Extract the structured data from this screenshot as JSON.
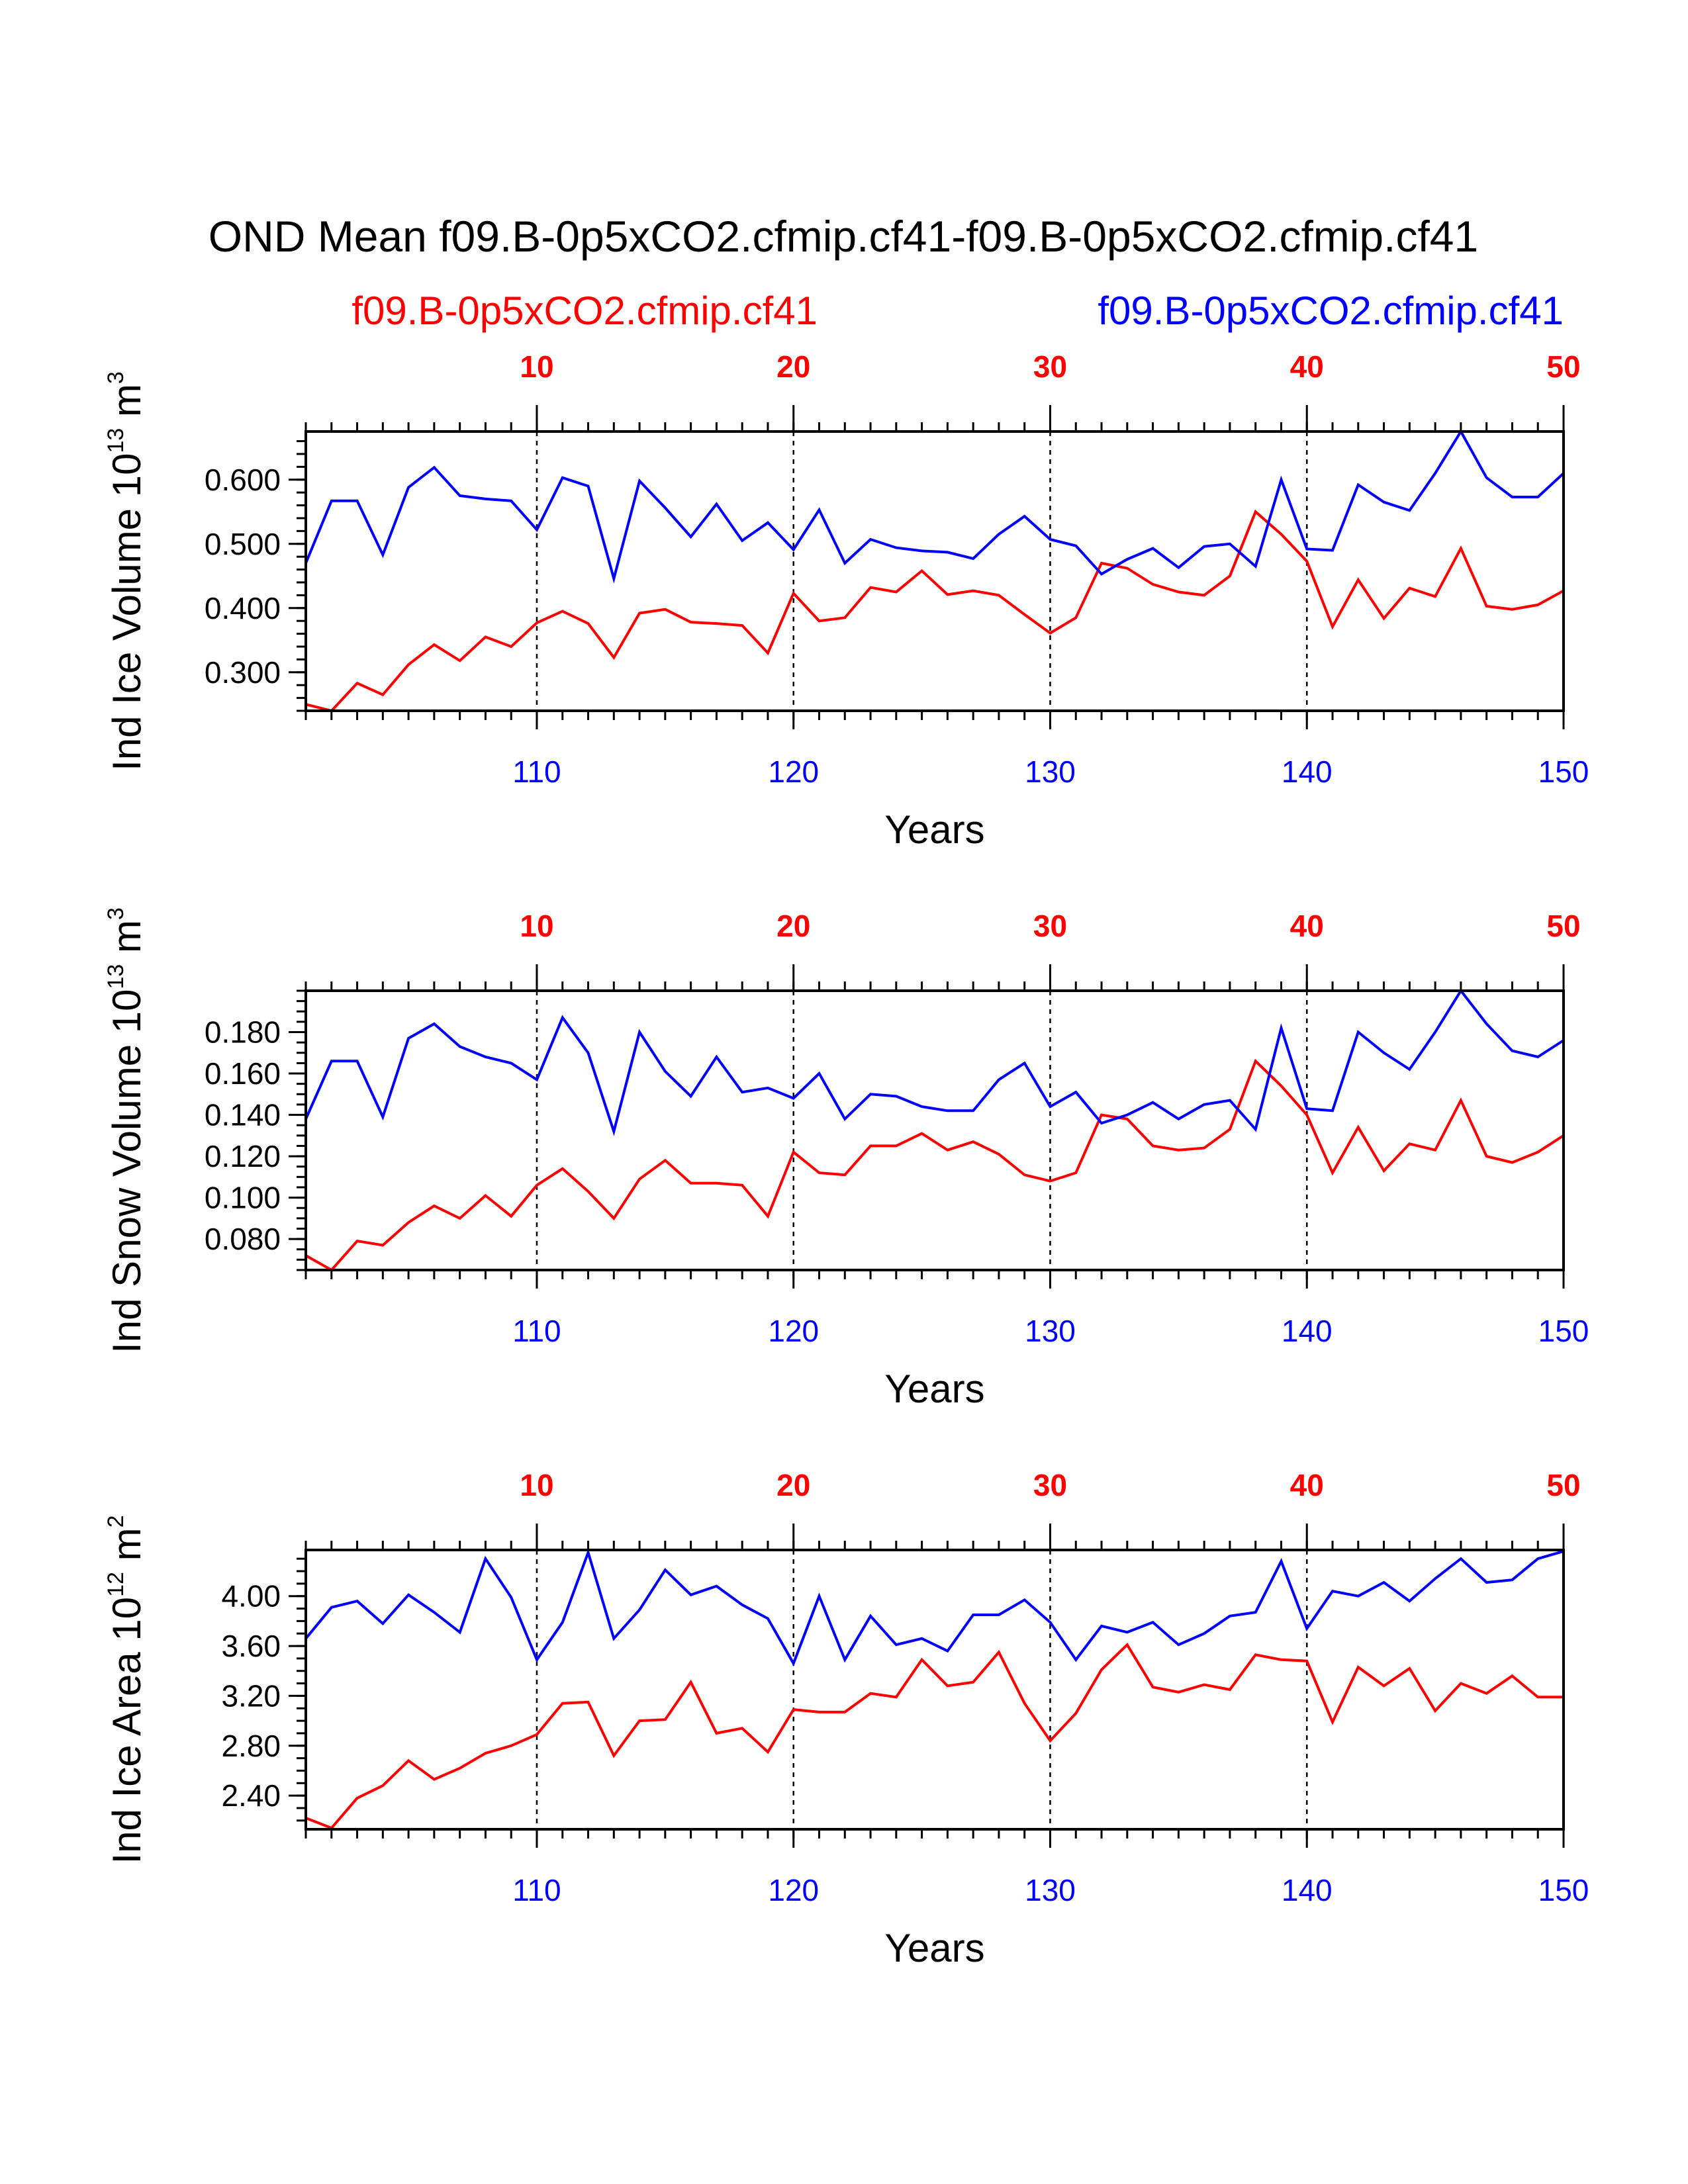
{
  "title": "OND Mean f09.B-0p5xCO2.cfmip.cf41-f09.B-0p5xCO2.cfmip.cf41",
  "legend": {
    "case1": "f09.B-0p5xCO2.cfmip.cf41",
    "case2": "f09.B-0p5xCO2.cfmip.cf41",
    "case1_color": "#ff0000",
    "case2_color": "#0000ff"
  },
  "chart_data": [
    {
      "type": "line",
      "ylabel_main": "Ind Ice Volume 10",
      "ylabel_exp": "13",
      "ylabel_unit": " m",
      "ylabel_unit_exp": "3",
      "xlabel": "Years",
      "ylim": [
        0.24,
        0.675
      ],
      "yticks": [
        "0.300",
        "0.400",
        "0.500",
        "0.600"
      ],
      "ytick_values": [
        0.3,
        0.4,
        0.5,
        0.6
      ],
      "y_minor_step": 0.02,
      "xlim": [
        101,
        150
      ],
      "x_top_ticks": [
        "10",
        "20",
        "30",
        "40",
        "50"
      ],
      "x_bottom_ticks": [
        "110",
        "120",
        "130",
        "140",
        "150"
      ],
      "x_tick_values": [
        110,
        120,
        130,
        140,
        150
      ],
      "x": [
        101,
        102,
        103,
        104,
        105,
        106,
        107,
        108,
        109,
        110,
        111,
        112,
        113,
        114,
        115,
        116,
        117,
        118,
        119,
        120,
        121,
        122,
        123,
        124,
        125,
        126,
        127,
        128,
        129,
        130,
        131,
        132,
        133,
        134,
        135,
        136,
        137,
        138,
        139,
        140,
        141,
        142,
        143,
        144,
        145,
        146,
        147,
        148,
        149,
        150
      ],
      "series": [
        {
          "name": "f09.B-0p5xCO2.cfmip.cf41 (red, years 1-50)",
          "color": "#ff0000",
          "values": [
            0.25,
            0.24,
            0.283,
            0.265,
            0.312,
            0.343,
            0.318,
            0.355,
            0.34,
            0.377,
            0.395,
            0.376,
            0.323,
            0.392,
            0.398,
            0.378,
            0.376,
            0.373,
            0.33,
            0.423,
            0.38,
            0.385,
            0.432,
            0.425,
            0.458,
            0.421,
            0.427,
            0.42,
            0.39,
            0.361,
            0.385,
            0.47,
            0.462,
            0.437,
            0.425,
            0.42,
            0.45,
            0.55,
            0.515,
            0.473,
            0.371,
            0.444,
            0.384,
            0.431,
            0.418,
            0.493,
            0.403,
            0.398,
            0.405,
            0.427
          ]
        },
        {
          "name": "f09.B-0p5xCO2.cfmip.cf41 (blue, years 101-150)",
          "color": "#0000ff",
          "values": [
            0.47,
            0.567,
            0.567,
            0.483,
            0.588,
            0.619,
            0.575,
            0.57,
            0.567,
            0.522,
            0.603,
            0.59,
            0.446,
            0.598,
            0.556,
            0.511,
            0.562,
            0.505,
            0.533,
            0.491,
            0.553,
            0.47,
            0.507,
            0.494,
            0.489,
            0.487,
            0.477,
            0.515,
            0.543,
            0.507,
            0.497,
            0.453,
            0.476,
            0.493,
            0.463,
            0.496,
            0.5,
            0.465,
            0.6,
            0.492,
            0.49,
            0.592,
            0.565,
            0.552,
            0.61,
            0.675,
            0.603,
            0.573,
            0.573,
            0.61
          ]
        }
      ]
    },
    {
      "type": "line",
      "ylabel_main": "Ind Snow Volume 10",
      "ylabel_exp": "13",
      "ylabel_unit": " m",
      "ylabel_unit_exp": "3",
      "xlabel": "Years",
      "ylim": [
        0.065,
        0.2
      ],
      "yticks": [
        "0.080",
        "0.100",
        "0.120",
        "0.140",
        "0.160",
        "0.180"
      ],
      "ytick_values": [
        0.08,
        0.1,
        0.12,
        0.14,
        0.16,
        0.18
      ],
      "y_minor_step": 0.005,
      "xlim": [
        101,
        150
      ],
      "x_top_ticks": [
        "10",
        "20",
        "30",
        "40",
        "50"
      ],
      "x_bottom_ticks": [
        "110",
        "120",
        "130",
        "140",
        "150"
      ],
      "x_tick_values": [
        110,
        120,
        130,
        140,
        150
      ],
      "x": [
        101,
        102,
        103,
        104,
        105,
        106,
        107,
        108,
        109,
        110,
        111,
        112,
        113,
        114,
        115,
        116,
        117,
        118,
        119,
        120,
        121,
        122,
        123,
        124,
        125,
        126,
        127,
        128,
        129,
        130,
        131,
        132,
        133,
        134,
        135,
        136,
        137,
        138,
        139,
        140,
        141,
        142,
        143,
        144,
        145,
        146,
        147,
        148,
        149,
        150
      ],
      "series": [
        {
          "name": "f09.B-0p5xCO2.cfmip.cf41 (red, years 1-50)",
          "color": "#ff0000",
          "values": [
            0.072,
            0.065,
            0.079,
            0.077,
            0.088,
            0.096,
            0.09,
            0.101,
            0.091,
            0.106,
            0.114,
            0.103,
            0.09,
            0.109,
            0.118,
            0.107,
            0.107,
            0.106,
            0.091,
            0.122,
            0.112,
            0.111,
            0.125,
            0.125,
            0.131,
            0.123,
            0.127,
            0.121,
            0.111,
            0.108,
            0.112,
            0.14,
            0.138,
            0.125,
            0.123,
            0.124,
            0.133,
            0.166,
            0.154,
            0.14,
            0.112,
            0.134,
            0.113,
            0.126,
            0.123,
            0.147,
            0.12,
            0.117,
            0.122,
            0.13
          ]
        },
        {
          "name": "f09.B-0p5xCO2.cfmip.cf41 (blue, years 101-150)",
          "color": "#0000ff",
          "values": [
            0.138,
            0.166,
            0.166,
            0.139,
            0.177,
            0.184,
            0.173,
            0.168,
            0.165,
            0.157,
            0.187,
            0.17,
            0.132,
            0.18,
            0.161,
            0.149,
            0.168,
            0.151,
            0.153,
            0.148,
            0.16,
            0.138,
            0.15,
            0.149,
            0.144,
            0.142,
            0.142,
            0.157,
            0.165,
            0.144,
            0.151,
            0.136,
            0.14,
            0.146,
            0.138,
            0.145,
            0.147,
            0.133,
            0.182,
            0.143,
            0.142,
            0.18,
            0.17,
            0.162,
            0.18,
            0.2,
            0.184,
            0.171,
            0.168,
            0.176
          ]
        }
      ]
    },
    {
      "type": "line",
      "ylabel_main": "Ind Ice Area 10",
      "ylabel_exp": "12",
      "ylabel_unit": " m",
      "ylabel_unit_exp": "2",
      "xlabel": "Years",
      "ylim": [
        2.13,
        4.37
      ],
      "yticks": [
        "2.40",
        "2.80",
        "3.20",
        "3.60",
        "4.00"
      ],
      "ytick_values": [
        2.4,
        2.8,
        3.2,
        3.6,
        4.0
      ],
      "y_minor_step": 0.1,
      "xlim": [
        101,
        150
      ],
      "x_top_ticks": [
        "10",
        "20",
        "30",
        "40",
        "50"
      ],
      "x_bottom_ticks": [
        "110",
        "120",
        "130",
        "140",
        "150"
      ],
      "x_tick_values": [
        110,
        120,
        130,
        140,
        150
      ],
      "x": [
        101,
        102,
        103,
        104,
        105,
        106,
        107,
        108,
        109,
        110,
        111,
        112,
        113,
        114,
        115,
        116,
        117,
        118,
        119,
        120,
        121,
        122,
        123,
        124,
        125,
        126,
        127,
        128,
        129,
        130,
        131,
        132,
        133,
        134,
        135,
        136,
        137,
        138,
        139,
        140,
        141,
        142,
        143,
        144,
        145,
        146,
        147,
        148,
        149,
        150
      ],
      "series": [
        {
          "name": "f09.B-0p5xCO2.cfmip.cf41 (red, years 1-50)",
          "color": "#ff0000",
          "values": [
            2.22,
            2.14,
            2.38,
            2.48,
            2.68,
            2.53,
            2.62,
            2.74,
            2.8,
            2.89,
            3.14,
            3.15,
            2.72,
            3.0,
            3.01,
            3.31,
            2.9,
            2.94,
            2.75,
            3.09,
            3.07,
            3.07,
            3.22,
            3.19,
            3.49,
            3.28,
            3.31,
            3.55,
            3.14,
            2.84,
            3.06,
            3.41,
            3.61,
            3.27,
            3.23,
            3.29,
            3.25,
            3.53,
            3.49,
            3.48,
            2.99,
            3.43,
            3.28,
            3.42,
            3.08,
            3.3,
            3.22,
            3.36,
            3.19,
            3.19
          ]
        },
        {
          "name": "f09.B-0p5xCO2.cfmip.cf41 (blue, years 101-150)",
          "color": "#0000ff",
          "values": [
            3.66,
            3.91,
            3.96,
            3.78,
            4.01,
            3.87,
            3.71,
            4.3,
            3.99,
            3.49,
            3.79,
            4.35,
            3.66,
            3.89,
            4.21,
            4.01,
            4.08,
            3.93,
            3.82,
            3.46,
            4.0,
            3.49,
            3.84,
            3.61,
            3.66,
            3.56,
            3.85,
            3.85,
            3.97,
            3.79,
            3.49,
            3.76,
            3.71,
            3.79,
            3.61,
            3.7,
            3.84,
            3.87,
            4.28,
            3.74,
            4.04,
            4.0,
            4.11,
            3.96,
            4.14,
            4.3,
            4.11,
            4.13,
            4.3,
            4.36
          ]
        }
      ]
    }
  ]
}
